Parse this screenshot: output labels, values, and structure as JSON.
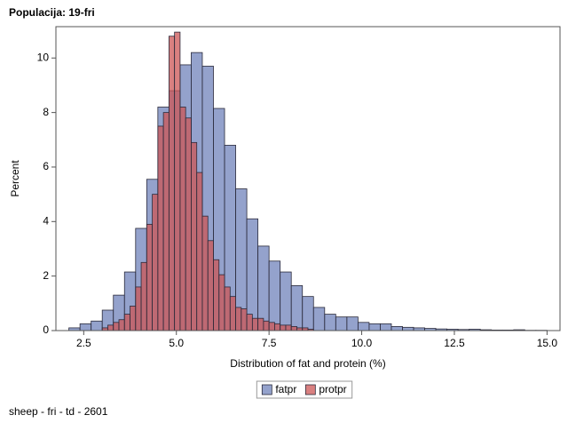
{
  "chart_data": {
    "type": "histogram",
    "title": "Populacija: 19-fri",
    "xlabel": "Distribution of fat and protein (%)",
    "ylabel": "Percent",
    "footnote": "sheep - fri - td - 2601",
    "xlim": [
      1.75,
      15.35
    ],
    "ylim": [
      0,
      11.15
    ],
    "xticks": [
      2.5,
      {
        "value": 5,
        "label": "5.0"
      },
      7.5,
      {
        "value": 10,
        "label": "10.0"
      },
      12.5,
      {
        "value": 15,
        "label": "15.0"
      }
    ],
    "yticks": [
      0,
      2,
      4,
      6,
      8,
      10
    ],
    "series": [
      {
        "name": "fatpr",
        "color": "#7083bb",
        "bins": [
          2.1,
          2.4,
          2.7,
          3.0,
          3.3,
          3.6,
          3.9,
          4.2,
          4.5,
          4.8,
          5.1,
          5.4,
          5.7,
          6.0,
          6.3,
          6.6,
          6.9,
          7.2,
          7.5,
          7.8,
          8.1,
          8.4,
          8.7,
          9.0,
          9.3,
          9.6,
          9.9,
          10.2,
          10.5,
          10.8,
          11.1,
          11.4,
          11.7,
          12.0,
          12.3,
          12.6,
          12.9,
          13.2,
          13.5,
          13.8,
          14.1,
          14.4,
          14.7,
          15.0
        ],
        "values": [
          0.1,
          0.25,
          0.35,
          0.75,
          1.3,
          2.15,
          3.75,
          5.55,
          8.2,
          8.8,
          9.75,
          10.2,
          9.7,
          8.15,
          6.8,
          5.2,
          4.1,
          3.1,
          2.55,
          2.15,
          1.65,
          1.25,
          0.85,
          0.6,
          0.5,
          0.5,
          0.3,
          0.25,
          0.25,
          0.15,
          0.12,
          0.1,
          0.08,
          0.06,
          0.05,
          0.04,
          0.05,
          0.03,
          0.02,
          0.02,
          0.03,
          0.01,
          0.01
        ]
      },
      {
        "name": "protpr",
        "color": "#cc5555",
        "bins": [
          3.0,
          3.15,
          3.3,
          3.45,
          3.6,
          3.75,
          3.9,
          4.05,
          4.2,
          4.35,
          4.5,
          4.65,
          4.8,
          4.95,
          5.1,
          5.25,
          5.4,
          5.55,
          5.7,
          5.85,
          6.0,
          6.15,
          6.3,
          6.45,
          6.6,
          6.75,
          6.9,
          7.05,
          7.2,
          7.35,
          7.5,
          7.65,
          7.8,
          7.95,
          8.1,
          8.25,
          8.4,
          8.55,
          8.7
        ],
        "values": [
          0.1,
          0.2,
          0.3,
          0.4,
          0.6,
          0.9,
          1.6,
          2.5,
          3.9,
          5.0,
          7.5,
          8.0,
          10.8,
          10.95,
          8.2,
          7.8,
          6.9,
          5.8,
          4.2,
          3.3,
          2.6,
          2.05,
          1.6,
          1.25,
          0.85,
          0.8,
          0.6,
          0.45,
          0.45,
          0.35,
          0.3,
          0.25,
          0.2,
          0.2,
          0.15,
          0.1,
          0.1,
          0.05
        ]
      }
    ]
  }
}
